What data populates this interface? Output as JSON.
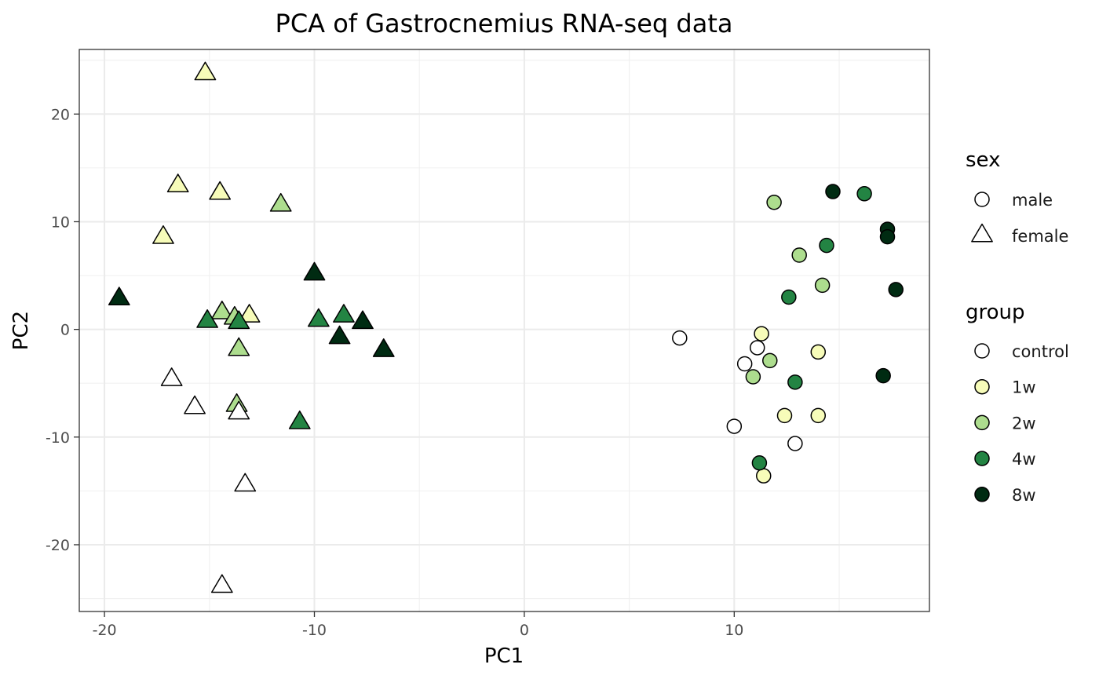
{
  "chart_data": {
    "type": "scatter",
    "title": "PCA of Gastrocnemius RNA-seq data",
    "xlabel": "PC1",
    "ylabel": "PC2",
    "xlim": [
      -21.2,
      19.3
    ],
    "ylim": [
      -26.2,
      26
    ],
    "x_ticks": [
      -20,
      -10,
      0,
      10
    ],
    "x_tick_labels": [
      "-20",
      "-10",
      "0",
      "10"
    ],
    "y_ticks": [
      -20,
      -10,
      0,
      10,
      20
    ],
    "y_tick_labels": [
      "-20",
      "-10",
      "0",
      "10",
      "20"
    ],
    "grid": true,
    "legend_position": "right",
    "legends": [
      {
        "title": "sex",
        "entries": [
          {
            "label": "male",
            "shape": "circle"
          },
          {
            "label": "female",
            "shape": "triangle"
          }
        ]
      },
      {
        "title": "group",
        "entries": [
          {
            "label": "control",
            "color": "#ffffff"
          },
          {
            "label": "1w",
            "color": "#f7fcb9"
          },
          {
            "label": "2w",
            "color": "#addd8e"
          },
          {
            "label": "4w",
            "color": "#238443"
          },
          {
            "label": "8w",
            "color": "#002b12"
          }
        ]
      }
    ],
    "points": [
      {
        "x": -15.2,
        "y": 23.9,
        "sex": "female",
        "group": "1w"
      },
      {
        "x": -16.5,
        "y": 13.5,
        "sex": "female",
        "group": "1w"
      },
      {
        "x": -14.5,
        "y": 12.8,
        "sex": "female",
        "group": "1w"
      },
      {
        "x": -17.2,
        "y": 8.7,
        "sex": "female",
        "group": "1w"
      },
      {
        "x": -13.1,
        "y": 1.4,
        "sex": "female",
        "group": "1w"
      },
      {
        "x": -11.6,
        "y": 11.7,
        "sex": "female",
        "group": "2w"
      },
      {
        "x": -14.4,
        "y": 1.7,
        "sex": "female",
        "group": "2w"
      },
      {
        "x": -13.8,
        "y": 1.2,
        "sex": "female",
        "group": "2w"
      },
      {
        "x": -13.6,
        "y": -1.7,
        "sex": "female",
        "group": "2w"
      },
      {
        "x": -13.7,
        "y": -6.9,
        "sex": "female",
        "group": "2w"
      },
      {
        "x": -15.1,
        "y": 0.9,
        "sex": "female",
        "group": "4w"
      },
      {
        "x": -13.6,
        "y": 0.8,
        "sex": "female",
        "group": "4w"
      },
      {
        "x": -9.8,
        "y": 1.0,
        "sex": "female",
        "group": "4w"
      },
      {
        "x": -8.6,
        "y": 1.4,
        "sex": "female",
        "group": "4w"
      },
      {
        "x": -10.7,
        "y": -8.5,
        "sex": "female",
        "group": "4w"
      },
      {
        "x": -19.3,
        "y": 3.0,
        "sex": "female",
        "group": "8w"
      },
      {
        "x": -10.0,
        "y": 5.3,
        "sex": "female",
        "group": "8w"
      },
      {
        "x": -8.8,
        "y": -0.6,
        "sex": "female",
        "group": "8w"
      },
      {
        "x": -7.7,
        "y": 0.8,
        "sex": "female",
        "group": "8w"
      },
      {
        "x": -6.7,
        "y": -1.8,
        "sex": "female",
        "group": "8w"
      },
      {
        "x": -16.8,
        "y": -4.5,
        "sex": "female",
        "group": "control"
      },
      {
        "x": -15.7,
        "y": -7.1,
        "sex": "female",
        "group": "control"
      },
      {
        "x": -13.6,
        "y": -7.6,
        "sex": "female",
        "group": "control"
      },
      {
        "x": -13.3,
        "y": -14.3,
        "sex": "female",
        "group": "control"
      },
      {
        "x": -14.4,
        "y": -23.7,
        "sex": "female",
        "group": "control"
      },
      {
        "x": 7.4,
        "y": -0.8,
        "sex": "male",
        "group": "control"
      },
      {
        "x": 11.1,
        "y": -1.7,
        "sex": "male",
        "group": "control"
      },
      {
        "x": 10.5,
        "y": -3.2,
        "sex": "male",
        "group": "control"
      },
      {
        "x": 10.0,
        "y": -9.0,
        "sex": "male",
        "group": "control"
      },
      {
        "x": 12.9,
        "y": -10.6,
        "sex": "male",
        "group": "control"
      },
      {
        "x": 11.3,
        "y": -0.4,
        "sex": "male",
        "group": "1w"
      },
      {
        "x": 14.0,
        "y": -2.1,
        "sex": "male",
        "group": "1w"
      },
      {
        "x": 12.4,
        "y": -8.0,
        "sex": "male",
        "group": "1w"
      },
      {
        "x": 14.0,
        "y": -8.0,
        "sex": "male",
        "group": "1w"
      },
      {
        "x": 11.4,
        "y": -13.6,
        "sex": "male",
        "group": "1w"
      },
      {
        "x": 11.9,
        "y": 11.8,
        "sex": "male",
        "group": "2w"
      },
      {
        "x": 13.1,
        "y": 6.9,
        "sex": "male",
        "group": "2w"
      },
      {
        "x": 14.2,
        "y": 4.1,
        "sex": "male",
        "group": "2w"
      },
      {
        "x": 11.7,
        "y": -2.9,
        "sex": "male",
        "group": "2w"
      },
      {
        "x": 10.9,
        "y": -4.4,
        "sex": "male",
        "group": "2w"
      },
      {
        "x": 16.2,
        "y": 12.6,
        "sex": "male",
        "group": "4w"
      },
      {
        "x": 14.4,
        "y": 7.8,
        "sex": "male",
        "group": "4w"
      },
      {
        "x": 12.6,
        "y": 3.0,
        "sex": "male",
        "group": "4w"
      },
      {
        "x": 12.9,
        "y": -4.9,
        "sex": "male",
        "group": "4w"
      },
      {
        "x": 11.2,
        "y": -12.4,
        "sex": "male",
        "group": "4w"
      },
      {
        "x": 14.7,
        "y": 12.8,
        "sex": "male",
        "group": "8w"
      },
      {
        "x": 17.3,
        "y": 9.3,
        "sex": "male",
        "group": "8w"
      },
      {
        "x": 17.3,
        "y": 8.6,
        "sex": "male",
        "group": "8w"
      },
      {
        "x": 17.7,
        "y": 3.7,
        "sex": "male",
        "group": "8w"
      },
      {
        "x": 17.1,
        "y": -4.3,
        "sex": "male",
        "group": "8w"
      }
    ]
  }
}
